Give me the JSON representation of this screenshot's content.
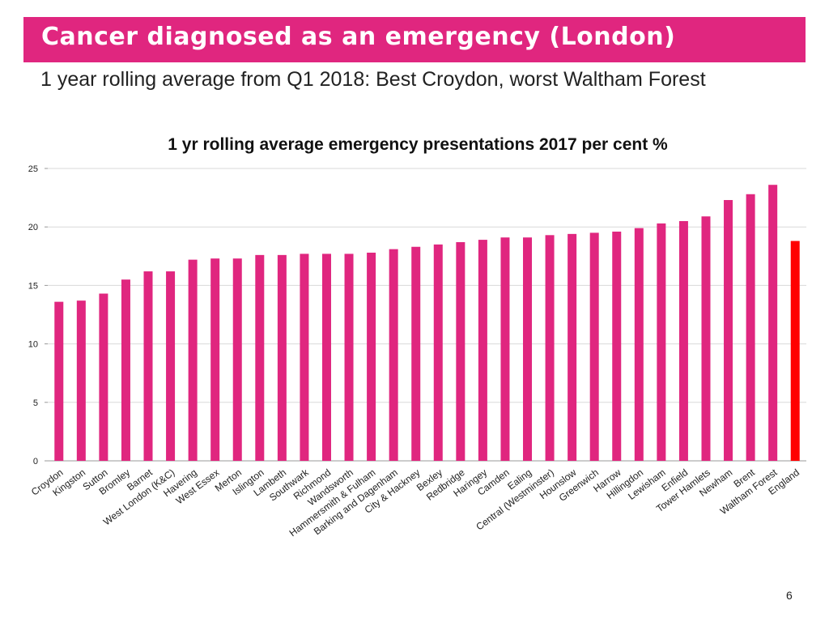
{
  "slide": {
    "title": "Cancer diagnosed as an emergency (London)",
    "subtitle": "1 year rolling average from Q1 2018:  Best Croydon, worst Waltham Forest",
    "page_number": "6"
  },
  "colors": {
    "brand": "#e0267f",
    "bar": "#e0267f",
    "highlight": "#ff0000",
    "grid": "#d9d9d9"
  },
  "chart_data": {
    "type": "bar",
    "title": "1 yr rolling average emergency presentations 2017 per cent %",
    "xlabel": "",
    "ylabel": "",
    "ylim": [
      0,
      25
    ],
    "yticks": [
      0,
      5,
      10,
      15,
      20,
      25
    ],
    "grid": true,
    "highlight_category": "England",
    "categories": [
      "Croydon",
      "Kingston",
      "Sutton",
      "Bromley",
      "Barnet",
      "West London (K&C)",
      "Havering",
      "West Essex",
      "Merton",
      "Islington",
      "Lambeth",
      "Southwark",
      "Richmond",
      "Wandsworth",
      "Hammersmith & Fulham",
      "Barking and Dagenham",
      "City & Hackney",
      "Bexley",
      "Redbridge",
      "Haringey",
      "Camden",
      "Ealing",
      "Central (Westminster)",
      "Hounslow",
      "Greenwich",
      "Harrow",
      "Hillingdon",
      "Lewisham",
      "Enfield",
      "Tower Hamlets",
      "Newham",
      "Brent",
      "Waltham Forest",
      "England"
    ],
    "values": [
      13.6,
      13.7,
      14.3,
      15.5,
      16.2,
      16.2,
      17.2,
      17.3,
      17.3,
      17.6,
      17.6,
      17.7,
      17.7,
      17.7,
      17.8,
      18.1,
      18.3,
      18.5,
      18.7,
      18.9,
      19.1,
      19.1,
      19.3,
      19.4,
      19.5,
      19.6,
      19.9,
      20.3,
      20.5,
      20.9,
      22.3,
      22.8,
      23.6,
      18.8
    ]
  }
}
